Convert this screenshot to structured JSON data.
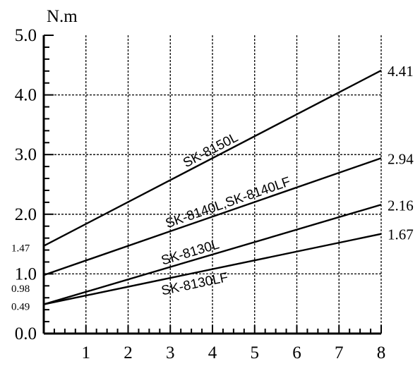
{
  "chart_data": {
    "type": "line",
    "ylabel": "N.m",
    "xlim": [
      0,
      8
    ],
    "ylim": [
      0,
      5
    ],
    "x_ticks": [
      "1",
      "2",
      "3",
      "4",
      "5",
      "6",
      "7",
      "8"
    ],
    "y_ticks": [
      {
        "value": 0,
        "label": "0.0"
      },
      {
        "value": 1,
        "label": "1.0"
      },
      {
        "value": 2,
        "label": "2.0"
      },
      {
        "value": 3,
        "label": "3.0"
      },
      {
        "value": 4,
        "label": "4.0"
      },
      {
        "value": 5,
        "label": "5.0"
      }
    ],
    "y_value_labels": [
      {
        "value": 1.47,
        "label": "1.47"
      },
      {
        "value": 0.98,
        "label": "0.98"
      },
      {
        "value": 0.49,
        "label": "0.49"
      }
    ],
    "grid": true,
    "series": [
      {
        "name": "SK-8150L",
        "x": [
          0,
          8
        ],
        "y": [
          1.47,
          4.41
        ],
        "end_label": "4.41",
        "label_x": 4.0
      },
      {
        "name": "SK-8140L,SK-8140LF",
        "x": [
          0,
          8
        ],
        "y": [
          0.98,
          2.94
        ],
        "end_label": "2.94",
        "label_x": 4.4
      },
      {
        "name": "SK-8130L",
        "x": [
          0,
          8
        ],
        "y": [
          0.49,
          2.16
        ],
        "end_label": "2.16",
        "label_x": 3.5
      },
      {
        "name": "SK-8130LF",
        "x": [
          0,
          8
        ],
        "y": [
          0.49,
          1.67
        ],
        "end_label": "1.67",
        "label_x": 3.6
      }
    ]
  }
}
